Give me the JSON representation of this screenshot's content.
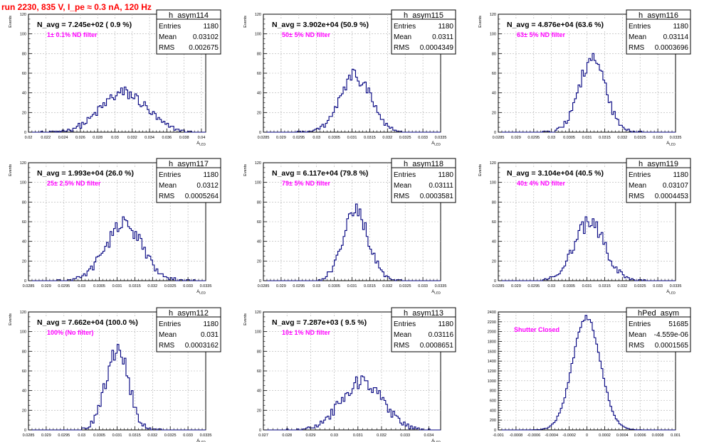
{
  "run_title": "run 2230,   835 V, I_pe ≈ 0.3 nA, 120 Hz",
  "chart_data": [
    {
      "type": "bar",
      "name": "h_asym114",
      "title": "N_avg = 7.245e+02 ( 0.9 %)",
      "filter_label": "1± 0.1% ND filter",
      "xlabel": "A_LED",
      "ylabel": "Events",
      "xlim": [
        0.02,
        0.0405
      ],
      "ylim": [
        0,
        120
      ],
      "xticks": [
        0.02,
        0.022,
        0.024,
        0.026,
        0.028,
        0.03,
        0.032,
        0.034,
        0.036,
        0.038,
        0.04
      ],
      "xtick_labels": [
        "0.02",
        "0.022",
        "0.024",
        "0.026",
        "0.028",
        "0.03",
        "0.032",
        "0.034",
        "0.036",
        "0.038",
        "0.04"
      ],
      "yticks": [
        0,
        20,
        40,
        60,
        80,
        100,
        120
      ],
      "stats": {
        "entries": "1180",
        "mean": "0.03102",
        "rms": "0.002675"
      },
      "mean_value": 0.03102,
      "rms_value": 0.002675,
      "peak": 40,
      "entries": 1180,
      "grid": true
    },
    {
      "type": "bar",
      "name": "h_asym115",
      "title": "N_avg = 3.902e+04 (50.9 %)",
      "filter_label": "50± 5% ND filter",
      "xlabel": "A_LED",
      "ylabel": "Events",
      "xlim": [
        0.0285,
        0.0335
      ],
      "ylim": [
        0,
        120
      ],
      "xticks": [
        0.0285,
        0.029,
        0.0295,
        0.03,
        0.0305,
        0.031,
        0.0315,
        0.032,
        0.0325,
        0.033,
        0.0335
      ],
      "xtick_labels": [
        "0.0285",
        "0.029",
        "0.0295",
        "0.03",
        "0.0305",
        "0.031",
        "0.0315",
        "0.032",
        "0.0325",
        "0.033",
        "0.0335"
      ],
      "yticks": [
        0,
        20,
        40,
        60,
        80,
        100,
        120
      ],
      "stats": {
        "entries": "1180",
        "mean": "0.0311",
        "rms": "0.0004349"
      },
      "mean_value": 0.0311,
      "rms_value": 0.0004349,
      "peak": 57,
      "entries": 1180,
      "grid": true
    },
    {
      "type": "bar",
      "name": "h_asym116",
      "title": "N_avg = 4.876e+04 (63.6 %)",
      "filter_label": "63± 5% ND filter",
      "xlabel": "A_LED",
      "ylabel": "Events",
      "xlim": [
        0.0285,
        0.0335
      ],
      "ylim": [
        0,
        120
      ],
      "xticks": [
        0.0285,
        0.029,
        0.0295,
        0.03,
        0.0305,
        0.031,
        0.0315,
        0.032,
        0.0325,
        0.033,
        0.0335
      ],
      "xtick_labels": [
        "0.0285",
        "0.029",
        "0.0295",
        "0.03",
        "0.0305",
        "0.031",
        "0.0315",
        "0.032",
        "0.0325",
        "0.033",
        "0.0335"
      ],
      "yticks": [
        0,
        20,
        40,
        60,
        80,
        100,
        120
      ],
      "stats": {
        "entries": "1180",
        "mean": "0.03114",
        "rms": "0.0003696"
      },
      "mean_value": 0.03114,
      "rms_value": 0.0003696,
      "peak": 75,
      "entries": 1180,
      "grid": true
    },
    {
      "type": "bar",
      "name": "h_asym117",
      "title": "N_avg = 1.993e+04 (26.0 %)",
      "filter_label": "25± 2.5% ND filter",
      "xlabel": "A_LED",
      "ylabel": "Events",
      "xlim": [
        0.0285,
        0.0335
      ],
      "ylim": [
        0,
        120
      ],
      "xticks": [
        0.0285,
        0.029,
        0.0295,
        0.03,
        0.0305,
        0.031,
        0.0315,
        0.032,
        0.0325,
        0.033,
        0.0335
      ],
      "xtick_labels": [
        "0.0285",
        "0.029",
        "0.0295",
        "0.03",
        "0.0305",
        "0.031",
        "0.0315",
        "0.032",
        "0.0325",
        "0.033",
        "0.0335"
      ],
      "yticks": [
        0,
        20,
        40,
        60,
        80,
        100,
        120
      ],
      "stats": {
        "entries": "1180",
        "mean": "0.0312",
        "rms": "0.0005264"
      },
      "mean_value": 0.0312,
      "rms_value": 0.0005264,
      "peak": 57,
      "entries": 1180,
      "grid": true
    },
    {
      "type": "bar",
      "name": "h_asym118",
      "title": "N_avg = 6.117e+04 (79.8 %)",
      "filter_label": "79± 5% ND filter",
      "xlabel": "A_LED",
      "ylabel": "Events",
      "xlim": [
        0.0285,
        0.0335
      ],
      "ylim": [
        0,
        120
      ],
      "xticks": [
        0.0285,
        0.029,
        0.0295,
        0.03,
        0.0305,
        0.031,
        0.0315,
        0.032,
        0.0325,
        0.033,
        0.0335
      ],
      "xtick_labels": [
        "0.0285",
        "0.029",
        "0.0295",
        "0.03",
        "0.0305",
        "0.031",
        "0.0315",
        "0.032",
        "0.0325",
        "0.033",
        "0.0335"
      ],
      "yticks": [
        0,
        20,
        40,
        60,
        80,
        100,
        120
      ],
      "stats": {
        "entries": "1180",
        "mean": "0.03111",
        "rms": "0.0003581"
      },
      "mean_value": 0.03111,
      "rms_value": 0.0003581,
      "peak": 70,
      "entries": 1180,
      "grid": true
    },
    {
      "type": "bar",
      "name": "h_asym119",
      "title": "N_avg = 3.104e+04 (40.5 %)",
      "filter_label": "40± 4% ND filter",
      "xlabel": "A_LED",
      "ylabel": "Events",
      "xlim": [
        0.0285,
        0.0335
      ],
      "ylim": [
        0,
        120
      ],
      "xticks": [
        0.0285,
        0.029,
        0.0295,
        0.03,
        0.0305,
        0.031,
        0.0315,
        0.032,
        0.0325,
        0.033,
        0.0335
      ],
      "xtick_labels": [
        "0.0285",
        "0.029",
        "0.0295",
        "0.03",
        "0.0305",
        "0.031",
        "0.0315",
        "0.032",
        "0.0325",
        "0.033",
        "0.0335"
      ],
      "yticks": [
        0,
        20,
        40,
        60,
        80,
        100,
        120
      ],
      "stats": {
        "entries": "1180",
        "mean": "0.03107",
        "rms": "0.0004453"
      },
      "mean_value": 0.03107,
      "rms_value": 0.0004453,
      "peak": 58,
      "entries": 1180,
      "grid": true
    },
    {
      "type": "bar",
      "name": "h_asym112",
      "title": "N_avg = 7.662e+04 (100.0 %)",
      "filter_label": "100% (No filter)",
      "xlabel": "A_LED",
      "ylabel": "Events",
      "xlim": [
        0.0285,
        0.0335
      ],
      "ylim": [
        0,
        120
      ],
      "xticks": [
        0.0285,
        0.029,
        0.0295,
        0.03,
        0.0305,
        0.031,
        0.0315,
        0.032,
        0.0325,
        0.033,
        0.0335
      ],
      "xtick_labels": [
        "0.0285",
        "0.029",
        "0.0295",
        "0.03",
        "0.0305",
        "0.031",
        "0.0315",
        "0.032",
        "0.0325",
        "0.033",
        "0.0335"
      ],
      "yticks": [
        0,
        20,
        40,
        60,
        80,
        100,
        120
      ],
      "stats": {
        "entries": "1180",
        "mean": "0.031",
        "rms": "0.0003162"
      },
      "mean_value": 0.031,
      "rms_value": 0.0003162,
      "peak": 83,
      "entries": 1180,
      "grid": true
    },
    {
      "type": "bar",
      "name": "h_asym113",
      "title": "N_avg = 7.287e+03 ( 9.5 %)",
      "filter_label": "10± 1% ND filter",
      "xlabel": "A_LED",
      "ylabel": "Events",
      "xlim": [
        0.027,
        0.0345
      ],
      "ylim": [
        0,
        120
      ],
      "xticks": [
        0.027,
        0.028,
        0.029,
        0.03,
        0.031,
        0.032,
        0.033,
        0.034
      ],
      "xtick_labels": [
        "0.027",
        "0.028",
        "0.029",
        "0.03",
        "0.031",
        "0.032",
        "0.033",
        "0.034"
      ],
      "yticks": [
        0,
        20,
        40,
        60,
        80,
        100,
        120
      ],
      "stats": {
        "entries": "1180",
        "mean": "0.03116",
        "rms": "0.0008651"
      },
      "mean_value": 0.03116,
      "rms_value": 0.0008651,
      "peak": 50,
      "entries": 1180,
      "grid": true
    },
    {
      "type": "bar",
      "name": "hPed_asym",
      "title": "",
      "filter_label": "Shutter Closed",
      "xlabel": "",
      "ylabel": "",
      "xlim": [
        -0.001,
        0.001
      ],
      "ylim": [
        0,
        2400
      ],
      "xticks": [
        -0.001,
        -0.0008,
        -0.0006,
        -0.0004,
        -0.0002,
        0,
        0.0002,
        0.0004,
        0.0006,
        0.0008,
        0.001
      ],
      "xtick_labels": [
        "-0.001",
        "-0.0008",
        "-0.0006",
        "-0.0004",
        "-0.0002",
        "0",
        "0.0002",
        "0.0004",
        "0.0006",
        "0.0008",
        "0.001"
      ],
      "yticks": [
        0,
        200,
        400,
        600,
        800,
        1000,
        1200,
        1400,
        1600,
        1800,
        2000,
        2200,
        2400
      ],
      "stats": {
        "entries": "51685",
        "mean": "-4.559e-06",
        "rms": "0.0001565"
      },
      "mean_value": -4.559e-06,
      "rms_value": 0.0001565,
      "peak": 2300,
      "entries": 51685,
      "grid": true
    }
  ],
  "stats_labels": {
    "entries": "Entries",
    "mean": "Mean",
    "rms": "RMS"
  },
  "colors": {
    "histogram": "#00007f",
    "run_title": "#ff0000",
    "annotation": "#ff00ff",
    "grid": "#b0b0b0"
  }
}
